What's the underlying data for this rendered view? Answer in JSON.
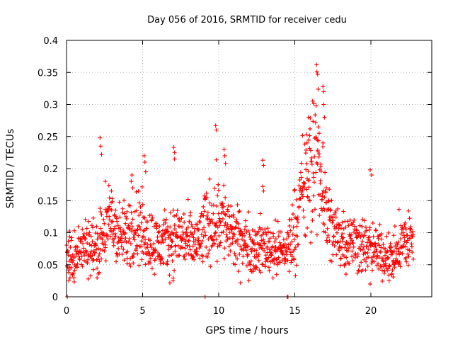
{
  "chart_data": {
    "type": "scatter",
    "title": "Day 056 of 2016, SRMTID for receiver cedu",
    "xlabel": "GPS time / hours",
    "ylabel": "SRMTID / TECUs",
    "xlim": [
      0,
      24
    ],
    "ylim": [
      0,
      0.4
    ],
    "xticks": [
      0,
      5,
      10,
      15,
      20
    ],
    "yticks": [
      0,
      0.05,
      0.1,
      0.15,
      0.2,
      0.25,
      0.3,
      0.35,
      0.4
    ],
    "grid": true,
    "marker": "plus",
    "series": [
      {
        "name": "SRMTID",
        "color": "#ff0000",
        "profile": [
          {
            "x": 0.0,
            "y": 0.07
          },
          {
            "x": 0.5,
            "y": 0.06
          },
          {
            "x": 1.0,
            "y": 0.075
          },
          {
            "x": 1.5,
            "y": 0.08
          },
          {
            "x": 2.0,
            "y": 0.075
          },
          {
            "x": 2.5,
            "y": 0.1
          },
          {
            "x": 3.0,
            "y": 0.12
          },
          {
            "x": 3.5,
            "y": 0.09
          },
          {
            "x": 4.0,
            "y": 0.095
          },
          {
            "x": 4.5,
            "y": 0.115
          },
          {
            "x": 5.0,
            "y": 0.1
          },
          {
            "x": 5.5,
            "y": 0.09
          },
          {
            "x": 6.0,
            "y": 0.08
          },
          {
            "x": 6.5,
            "y": 0.085
          },
          {
            "x": 7.0,
            "y": 0.09
          },
          {
            "x": 7.5,
            "y": 0.095
          },
          {
            "x": 8.0,
            "y": 0.085
          },
          {
            "x": 8.5,
            "y": 0.08
          },
          {
            "x": 9.0,
            "y": 0.1
          },
          {
            "x": 9.5,
            "y": 0.12
          },
          {
            "x": 10.0,
            "y": 0.13
          },
          {
            "x": 10.5,
            "y": 0.11
          },
          {
            "x": 11.0,
            "y": 0.09
          },
          {
            "x": 11.5,
            "y": 0.085
          },
          {
            "x": 12.0,
            "y": 0.08
          },
          {
            "x": 12.5,
            "y": 0.075
          },
          {
            "x": 13.0,
            "y": 0.08
          },
          {
            "x": 13.5,
            "y": 0.075
          },
          {
            "x": 14.0,
            "y": 0.07
          },
          {
            "x": 14.5,
            "y": 0.075
          },
          {
            "x": 15.0,
            "y": 0.11
          },
          {
            "x": 15.5,
            "y": 0.16
          },
          {
            "x": 16.0,
            "y": 0.19
          },
          {
            "x": 16.5,
            "y": 0.22
          },
          {
            "x": 17.0,
            "y": 0.14
          },
          {
            "x": 17.5,
            "y": 0.1
          },
          {
            "x": 18.0,
            "y": 0.095
          },
          {
            "x": 18.5,
            "y": 0.09
          },
          {
            "x": 19.0,
            "y": 0.085
          },
          {
            "x": 19.5,
            "y": 0.08
          },
          {
            "x": 20.0,
            "y": 0.075
          },
          {
            "x": 20.5,
            "y": 0.07
          },
          {
            "x": 21.0,
            "y": 0.065
          },
          {
            "x": 21.5,
            "y": 0.06
          },
          {
            "x": 22.0,
            "y": 0.085
          },
          {
            "x": 22.5,
            "y": 0.09
          },
          {
            "x": 22.8,
            "y": 0.085
          }
        ],
        "peaks": [
          {
            "x": 0.05,
            "y": 0.0
          },
          {
            "x": 0.15,
            "y": 0.025
          },
          {
            "x": 2.2,
            "y": 0.248
          },
          {
            "x": 2.25,
            "y": 0.235
          },
          {
            "x": 2.3,
            "y": 0.222
          },
          {
            "x": 2.55,
            "y": 0.18
          },
          {
            "x": 2.95,
            "y": 0.165
          },
          {
            "x": 4.3,
            "y": 0.19
          },
          {
            "x": 4.25,
            "y": 0.18
          },
          {
            "x": 4.35,
            "y": 0.17
          },
          {
            "x": 5.1,
            "y": 0.22
          },
          {
            "x": 5.15,
            "y": 0.21
          },
          {
            "x": 5.2,
            "y": 0.195
          },
          {
            "x": 7.05,
            "y": 0.233
          },
          {
            "x": 7.1,
            "y": 0.225
          },
          {
            "x": 7.1,
            "y": 0.215
          },
          {
            "x": 7.0,
            "y": 0.025
          },
          {
            "x": 9.1,
            "y": 0.0
          },
          {
            "x": 9.8,
            "y": 0.267
          },
          {
            "x": 9.85,
            "y": 0.26
          },
          {
            "x": 10.35,
            "y": 0.23
          },
          {
            "x": 10.4,
            "y": 0.22
          },
          {
            "x": 10.45,
            "y": 0.208
          },
          {
            "x": 12.9,
            "y": 0.213
          },
          {
            "x": 12.95,
            "y": 0.205
          },
          {
            "x": 12.9,
            "y": 0.172
          },
          {
            "x": 12.95,
            "y": 0.165
          },
          {
            "x": 14.5,
            "y": 0.0
          },
          {
            "x": 14.55,
            "y": 0.0
          },
          {
            "x": 16.45,
            "y": 0.351
          },
          {
            "x": 16.5,
            "y": 0.347
          },
          {
            "x": 16.85,
            "y": 0.328
          },
          {
            "x": 16.9,
            "y": 0.32
          },
          {
            "x": 16.9,
            "y": 0.3
          },
          {
            "x": 16.4,
            "y": 0.298
          },
          {
            "x": 16.95,
            "y": 0.28
          },
          {
            "x": 15.9,
            "y": 0.28
          },
          {
            "x": 16.0,
            "y": 0.262
          },
          {
            "x": 16.55,
            "y": 0.265
          },
          {
            "x": 16.6,
            "y": 0.255
          },
          {
            "x": 15.8,
            "y": 0.24
          },
          {
            "x": 16.85,
            "y": 0.24
          },
          {
            "x": 19.95,
            "y": 0.198
          },
          {
            "x": 20.05,
            "y": 0.19
          },
          {
            "x": 19.95,
            "y": 0.02
          },
          {
            "x": 21.2,
            "y": 0.025
          }
        ]
      }
    ]
  }
}
